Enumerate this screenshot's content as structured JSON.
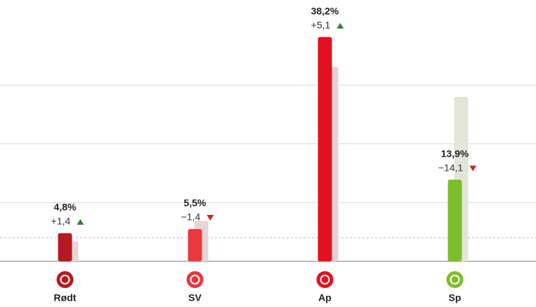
{
  "chart_data": {
    "type": "bar",
    "categories": [
      "Rødt",
      "SV",
      "Ap",
      "Sp"
    ],
    "values": [
      4.8,
      5.5,
      38.2,
      13.9
    ],
    "value_labels": [
      "4,8%",
      "5,5%",
      "38,2%",
      "13,9%"
    ],
    "previous_values": [
      3.4,
      6.9,
      33.1,
      28.0
    ],
    "changes": [
      1.4,
      -1.4,
      5.1,
      -14.1
    ],
    "change_labels": [
      "+1,4",
      "−1,4",
      "+5,1",
      "−14,1"
    ],
    "colors": [
      "#b51a22",
      "#e9383e",
      "#e3111f",
      "#7dbf2b"
    ],
    "previous_colors": [
      "#e8d5d6",
      "#ead3d4",
      "#e7d0d2",
      "#e1e6d9"
    ],
    "ylim": [
      0,
      44.5
    ],
    "yticks": [
      0,
      10,
      20,
      30
    ],
    "threshold": 4,
    "grid": true
  }
}
